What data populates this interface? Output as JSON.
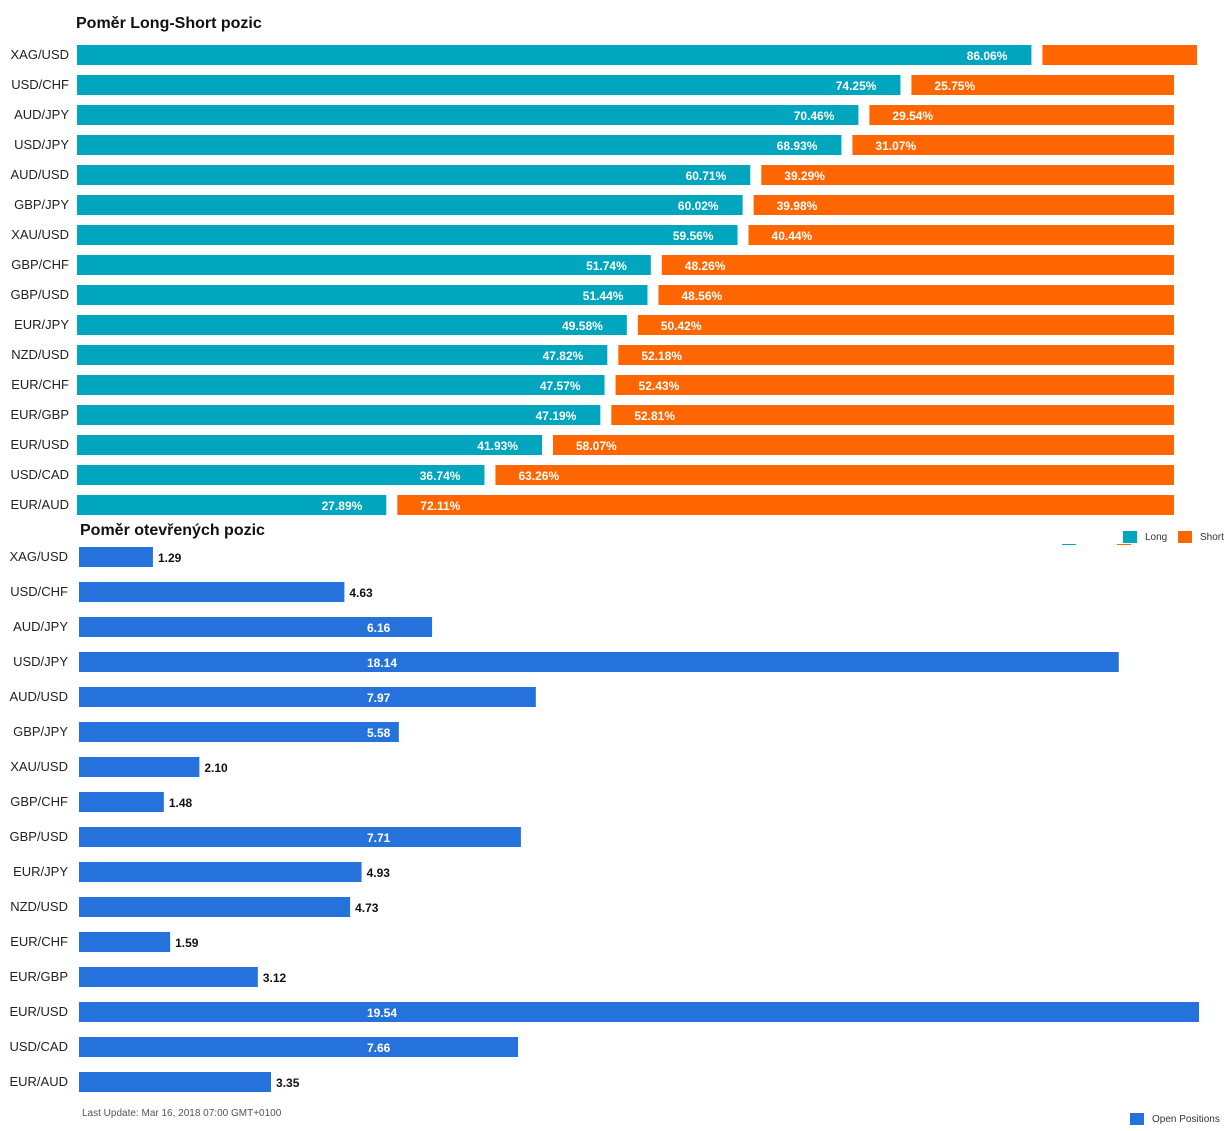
{
  "chart_data": [
    {
      "type": "bar",
      "orientation": "horizontal",
      "stacked": true,
      "title": "Poměr Long-Short pozic",
      "categories": [
        "XAG/USD",
        "USD/CHF",
        "AUD/JPY",
        "USD/JPY",
        "AUD/USD",
        "GBP/JPY",
        "XAU/USD",
        "GBP/CHF",
        "GBP/USD",
        "EUR/JPY",
        "NZD/USD",
        "EUR/CHF",
        "EUR/GBP",
        "EUR/USD",
        "USD/CAD",
        "EUR/AUD"
      ],
      "series": [
        {
          "name": "Long",
          "color": "#00a5be",
          "values": [
            86.06,
            74.25,
            70.46,
            68.93,
            60.71,
            60.02,
            59.56,
            51.74,
            51.44,
            49.58,
            47.82,
            47.57,
            47.19,
            41.93,
            36.74,
            27.89
          ],
          "labels": [
            "86.06%",
            "74.25%",
            "70.46%",
            "68.93%",
            "60.71%",
            "60.02%",
            "59.56%",
            "51.74%",
            "51.44%",
            "49.58%",
            "47.82%",
            "47.57%",
            "47.19%",
            "41.93%",
            "36.74%",
            "27.89%"
          ]
        },
        {
          "name": "Short",
          "color": "#ff6600",
          "values": [
            13.94,
            25.75,
            29.54,
            31.07,
            39.29,
            39.98,
            40.44,
            48.26,
            48.56,
            50.42,
            52.18,
            52.43,
            52.81,
            58.07,
            63.26,
            72.11
          ],
          "labels": [
            "",
            "25.75%",
            "29.54%",
            "31.07%",
            "39.29%",
            "39.98%",
            "40.44%",
            "48.26%",
            "48.56%",
            "50.42%",
            "52.18%",
            "52.43%",
            "52.81%",
            "58.07%",
            "63.26%",
            "72.11%"
          ]
        }
      ],
      "xlim": [
        0,
        100
      ],
      "legend_position": "bottom-right"
    },
    {
      "type": "bar",
      "orientation": "horizontal",
      "title": "Poměr otevřených pozic",
      "categories": [
        "XAG/USD",
        "USD/CHF",
        "AUD/JPY",
        "USD/JPY",
        "AUD/USD",
        "GBP/JPY",
        "XAU/USD",
        "GBP/CHF",
        "GBP/USD",
        "EUR/JPY",
        "NZD/USD",
        "EUR/CHF",
        "EUR/GBP",
        "EUR/USD",
        "USD/CAD",
        "EUR/AUD"
      ],
      "series": [
        {
          "name": "Open Positions",
          "color": "#2672dc",
          "values": [
            1.29,
            4.63,
            6.16,
            18.14,
            7.97,
            5.58,
            2.1,
            1.48,
            7.71,
            4.93,
            4.73,
            1.59,
            3.12,
            19.54,
            7.66,
            3.35
          ],
          "labels": [
            "1.29",
            "4.63",
            "6.16",
            "18.14",
            "7.97",
            "5.58",
            "2.10",
            "1.48",
            "7.71",
            "4.93",
            "4.73",
            "1.59",
            "3.12",
            "19.54",
            "7.66",
            "3.35"
          ]
        }
      ],
      "xlim": [
        0,
        19.54
      ],
      "legend_position": "bottom-right"
    }
  ],
  "legend": {
    "long_label": "Long",
    "short_label": "Short",
    "open_label": "Open Positions"
  },
  "footer": {
    "last_update": "Last Update: Mar 16, 2018 07:00 GMT+0100"
  }
}
